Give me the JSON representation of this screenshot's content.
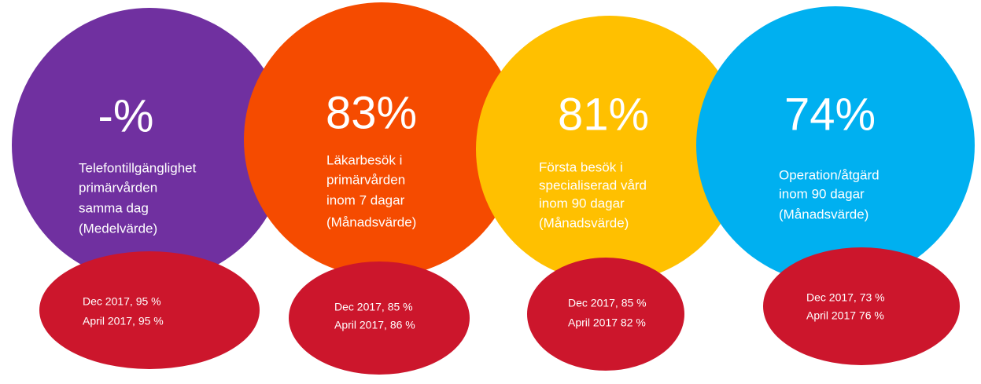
{
  "items": [
    {
      "value": "-%",
      "lines": [
        "Telefontillgänglighet",
        "primärvården",
        "samma dag",
        "(Medelvärde)"
      ],
      "compare": [
        "Dec 2017,   95 %",
        "April 2017,  95 %"
      ]
    },
    {
      "value": "83%",
      "lines": [
        "Läkarbesök i",
        "primärvården",
        "inom 7 dagar",
        "(Månadsvärde)"
      ],
      "compare": [
        "Dec 2017,  85 %",
        "April 2017, 86 %"
      ]
    },
    {
      "value": "81%",
      "lines": [
        "Första besök i",
        "specialiserad vård",
        "inom 90 dagar",
        "(Månadsvärde)"
      ],
      "compare": [
        "Dec 2017, 85 %",
        "April 2017  82 %"
      ]
    },
    {
      "value": "74%",
      "lines": [
        "Operation/åtgärd",
        "inom 90 dagar",
        "(Månadsvärde)"
      ],
      "compare": [
        "Dec 2017, 73 %",
        "April 2017  76 %"
      ]
    }
  ]
}
